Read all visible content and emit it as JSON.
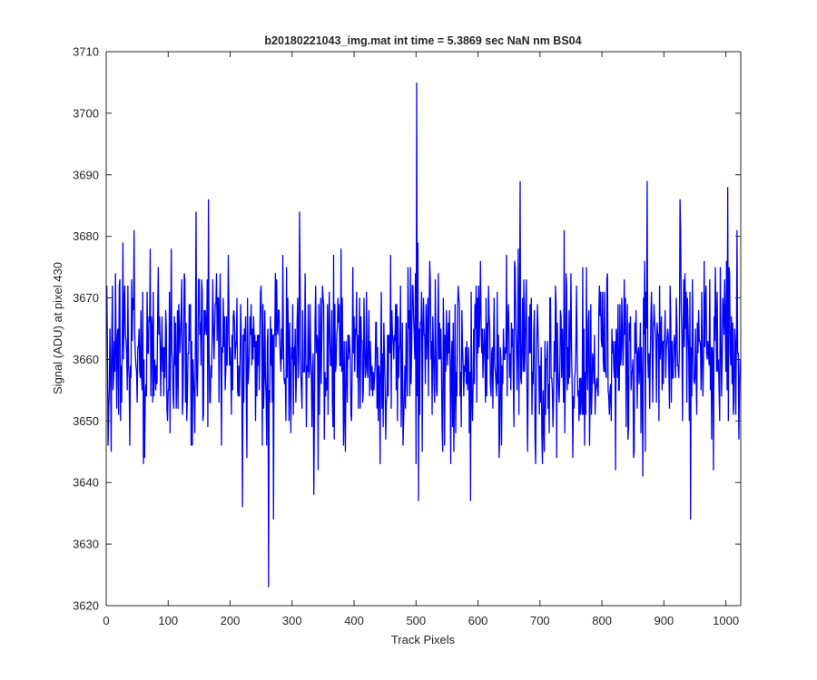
{
  "chart_data": {
    "type": "line",
    "title": "b20180221043_img.mat int time = 5.3869 sec  NaN nm BS04",
    "xlabel": "Track Pixels",
    "ylabel": "Signal (ADU) at pixel 430",
    "xlim": [
      0,
      1024
    ],
    "ylim": [
      3620,
      3710
    ],
    "xticks": [
      0,
      100,
      200,
      300,
      400,
      500,
      600,
      700,
      800,
      900,
      1000
    ],
    "yticks": [
      3620,
      3630,
      3640,
      3650,
      3660,
      3670,
      3680,
      3690,
      3700,
      3710
    ],
    "grid": false,
    "legend": "none",
    "series": [
      {
        "color": "#0000ff",
        "x_start": 1,
        "x_step": 1,
        "n_points": 1024,
        "y_summary": {
          "mean": 3661,
          "min": 3623,
          "max": 3705
        },
        "notable_points": [
          {
            "x": 4,
            "y": 3652
          },
          {
            "x": 8,
            "y": 3645
          },
          {
            "x": 27,
            "y": 3679
          },
          {
            "x": 165,
            "y": 3686
          },
          {
            "x": 145,
            "y": 3684
          },
          {
            "x": 220,
            "y": 3636
          },
          {
            "x": 262,
            "y": 3623
          },
          {
            "x": 270,
            "y": 3634
          },
          {
            "x": 312,
            "y": 3684
          },
          {
            "x": 335,
            "y": 3638
          },
          {
            "x": 501,
            "y": 3705
          },
          {
            "x": 504,
            "y": 3637
          },
          {
            "x": 588,
            "y": 3637
          },
          {
            "x": 668,
            "y": 3689
          },
          {
            "x": 822,
            "y": 3642
          },
          {
            "x": 873,
            "y": 3689
          },
          {
            "x": 926,
            "y": 3686
          },
          {
            "x": 943,
            "y": 3634
          },
          {
            "x": 980,
            "y": 3642
          },
          {
            "x": 1003,
            "y": 3688
          }
        ]
      }
    ]
  }
}
